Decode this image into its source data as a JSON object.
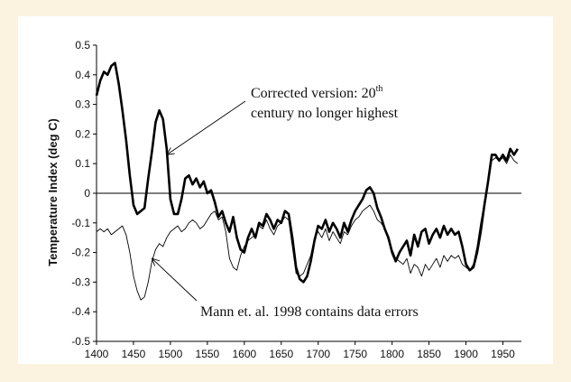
{
  "chart_data": {
    "type": "line",
    "title": "",
    "xlabel": "",
    "ylabel": "Temperature Index (deg C)",
    "xlim": [
      1400,
      1975
    ],
    "ylim": [
      -0.5,
      0.5
    ],
    "x_ticks": [
      "1400",
      "1450",
      "1500",
      "1550",
      "1600",
      "1650",
      "1700",
      "1750",
      "1800",
      "1850",
      "1900",
      "1950"
    ],
    "y_ticks": [
      "0.5",
      "0.4",
      "0.3",
      "0.2",
      "0.1",
      "0",
      "-0.1",
      "-0.2",
      "-0.3",
      "-0.4",
      "-0.5"
    ],
    "grid": false,
    "legend": "none",
    "series": [
      {
        "label_id": "corrected",
        "color": "#000000",
        "style": "thick",
        "points": [
          [
            1400,
            0.33
          ],
          [
            1405,
            0.38
          ],
          [
            1410,
            0.41
          ],
          [
            1415,
            0.4
          ],
          [
            1420,
            0.43
          ],
          [
            1425,
            0.44
          ],
          [
            1430,
            0.37
          ],
          [
            1435,
            0.28
          ],
          [
            1440,
            0.18
          ],
          [
            1445,
            0.06
          ],
          [
            1450,
            -0.04
          ],
          [
            1455,
            -0.07
          ],
          [
            1460,
            -0.06
          ],
          [
            1465,
            -0.05
          ],
          [
            1470,
            0.05
          ],
          [
            1475,
            0.14
          ],
          [
            1480,
            0.24
          ],
          [
            1485,
            0.28
          ],
          [
            1490,
            0.25
          ],
          [
            1495,
            0.15
          ],
          [
            1500,
            -0.02
          ],
          [
            1505,
            -0.07
          ],
          [
            1510,
            -0.07
          ],
          [
            1515,
            -0.02
          ],
          [
            1520,
            0.05
          ],
          [
            1525,
            0.06
          ],
          [
            1530,
            0.03
          ],
          [
            1535,
            0.05
          ],
          [
            1540,
            0.02
          ],
          [
            1545,
            0.04
          ],
          [
            1550,
            0.0
          ],
          [
            1555,
            0.01
          ],
          [
            1560,
            -0.03
          ],
          [
            1565,
            -0.08
          ],
          [
            1570,
            -0.06
          ],
          [
            1575,
            -0.1
          ],
          [
            1580,
            -0.13
          ],
          [
            1585,
            -0.08
          ],
          [
            1590,
            -0.15
          ],
          [
            1595,
            -0.19
          ],
          [
            1600,
            -0.2
          ],
          [
            1605,
            -0.15
          ],
          [
            1610,
            -0.12
          ],
          [
            1615,
            -0.15
          ],
          [
            1620,
            -0.1
          ],
          [
            1625,
            -0.11
          ],
          [
            1630,
            -0.07
          ],
          [
            1635,
            -0.09
          ],
          [
            1640,
            -0.12
          ],
          [
            1645,
            -0.09
          ],
          [
            1650,
            -0.1
          ],
          [
            1655,
            -0.06
          ],
          [
            1660,
            -0.07
          ],
          [
            1665,
            -0.15
          ],
          [
            1670,
            -0.25
          ],
          [
            1675,
            -0.29
          ],
          [
            1680,
            -0.3
          ],
          [
            1685,
            -0.28
          ],
          [
            1690,
            -0.23
          ],
          [
            1695,
            -0.16
          ],
          [
            1700,
            -0.11
          ],
          [
            1705,
            -0.12
          ],
          [
            1710,
            -0.09
          ],
          [
            1715,
            -0.13
          ],
          [
            1720,
            -0.1
          ],
          [
            1725,
            -0.12
          ],
          [
            1730,
            -0.15
          ],
          [
            1735,
            -0.1
          ],
          [
            1740,
            -0.13
          ],
          [
            1745,
            -0.09
          ],
          [
            1750,
            -0.06
          ],
          [
            1755,
            -0.04
          ],
          [
            1760,
            -0.02
          ],
          [
            1765,
            0.01
          ],
          [
            1770,
            0.02
          ],
          [
            1775,
            0.0
          ],
          [
            1780,
            -0.05
          ],
          [
            1785,
            -0.08
          ],
          [
            1790,
            -0.12
          ],
          [
            1795,
            -0.15
          ],
          [
            1800,
            -0.2
          ],
          [
            1805,
            -0.23
          ],
          [
            1810,
            -0.2
          ],
          [
            1815,
            -0.18
          ],
          [
            1820,
            -0.16
          ],
          [
            1825,
            -0.21
          ],
          [
            1830,
            -0.14
          ],
          [
            1835,
            -0.18
          ],
          [
            1840,
            -0.13
          ],
          [
            1845,
            -0.12
          ],
          [
            1850,
            -0.17
          ],
          [
            1855,
            -0.14
          ],
          [
            1860,
            -0.12
          ],
          [
            1865,
            -0.15
          ],
          [
            1870,
            -0.11
          ],
          [
            1875,
            -0.14
          ],
          [
            1880,
            -0.12
          ],
          [
            1885,
            -0.14
          ],
          [
            1890,
            -0.13
          ],
          [
            1895,
            -0.18
          ],
          [
            1900,
            -0.24
          ],
          [
            1905,
            -0.26
          ],
          [
            1910,
            -0.25
          ],
          [
            1915,
            -0.2
          ],
          [
            1920,
            -0.13
          ],
          [
            1925,
            -0.04
          ],
          [
            1930,
            0.04
          ],
          [
            1935,
            0.13
          ],
          [
            1940,
            0.13
          ],
          [
            1945,
            0.11
          ],
          [
            1950,
            0.13
          ],
          [
            1955,
            0.11
          ],
          [
            1960,
            0.15
          ],
          [
            1965,
            0.13
          ],
          [
            1970,
            0.15
          ]
        ]
      },
      {
        "label_id": "mann",
        "color": "#000000",
        "style": "thin",
        "points": [
          [
            1400,
            -0.13
          ],
          [
            1405,
            -0.12
          ],
          [
            1410,
            -0.13
          ],
          [
            1415,
            -0.12
          ],
          [
            1420,
            -0.14
          ],
          [
            1425,
            -0.13
          ],
          [
            1430,
            -0.12
          ],
          [
            1435,
            -0.11
          ],
          [
            1440,
            -0.14
          ],
          [
            1445,
            -0.2
          ],
          [
            1450,
            -0.28
          ],
          [
            1455,
            -0.33
          ],
          [
            1460,
            -0.36
          ],
          [
            1465,
            -0.35
          ],
          [
            1470,
            -0.3
          ],
          [
            1475,
            -0.23
          ],
          [
            1480,
            -0.19
          ],
          [
            1485,
            -0.17
          ],
          [
            1490,
            -0.18
          ],
          [
            1495,
            -0.15
          ],
          [
            1500,
            -0.13
          ],
          [
            1505,
            -0.12
          ],
          [
            1510,
            -0.11
          ],
          [
            1515,
            -0.13
          ],
          [
            1520,
            -0.12
          ],
          [
            1525,
            -0.1
          ],
          [
            1530,
            -0.09
          ],
          [
            1535,
            -0.1
          ],
          [
            1540,
            -0.12
          ],
          [
            1545,
            -0.11
          ],
          [
            1550,
            -0.09
          ],
          [
            1555,
            -0.07
          ],
          [
            1560,
            -0.06
          ],
          [
            1565,
            -0.09
          ],
          [
            1570,
            -0.08
          ],
          [
            1575,
            -0.13
          ],
          [
            1580,
            -0.22
          ],
          [
            1585,
            -0.25
          ],
          [
            1590,
            -0.26
          ],
          [
            1595,
            -0.21
          ],
          [
            1600,
            -0.18
          ],
          [
            1605,
            -0.16
          ],
          [
            1610,
            -0.15
          ],
          [
            1615,
            -0.14
          ],
          [
            1620,
            -0.11
          ],
          [
            1625,
            -0.12
          ],
          [
            1630,
            -0.09
          ],
          [
            1635,
            -0.12
          ],
          [
            1640,
            -0.14
          ],
          [
            1645,
            -0.11
          ],
          [
            1650,
            -0.1
          ],
          [
            1655,
            -0.08
          ],
          [
            1660,
            -0.09
          ],
          [
            1665,
            -0.18
          ],
          [
            1670,
            -0.27
          ],
          [
            1675,
            -0.28
          ],
          [
            1680,
            -0.27
          ],
          [
            1685,
            -0.24
          ],
          [
            1690,
            -0.21
          ],
          [
            1695,
            -0.15
          ],
          [
            1700,
            -0.13
          ],
          [
            1705,
            -0.15
          ],
          [
            1710,
            -0.12
          ],
          [
            1715,
            -0.16
          ],
          [
            1720,
            -0.13
          ],
          [
            1725,
            -0.15
          ],
          [
            1730,
            -0.17
          ],
          [
            1735,
            -0.13
          ],
          [
            1740,
            -0.14
          ],
          [
            1745,
            -0.11
          ],
          [
            1750,
            -0.09
          ],
          [
            1755,
            -0.08
          ],
          [
            1760,
            -0.06
          ],
          [
            1765,
            -0.05
          ],
          [
            1770,
            -0.04
          ],
          [
            1775,
            -0.06
          ],
          [
            1780,
            -0.09
          ],
          [
            1785,
            -0.1
          ],
          [
            1790,
            -0.12
          ],
          [
            1795,
            -0.16
          ],
          [
            1800,
            -0.19
          ],
          [
            1805,
            -0.22
          ],
          [
            1810,
            -0.23
          ],
          [
            1815,
            -0.24
          ],
          [
            1820,
            -0.22
          ],
          [
            1825,
            -0.27
          ],
          [
            1830,
            -0.24
          ],
          [
            1835,
            -0.25
          ],
          [
            1840,
            -0.28
          ],
          [
            1845,
            -0.24
          ],
          [
            1850,
            -0.26
          ],
          [
            1855,
            -0.24
          ],
          [
            1860,
            -0.22
          ],
          [
            1865,
            -0.25
          ],
          [
            1870,
            -0.21
          ],
          [
            1875,
            -0.23
          ],
          [
            1880,
            -0.21
          ],
          [
            1885,
            -0.22
          ],
          [
            1890,
            -0.21
          ],
          [
            1895,
            -0.24
          ],
          [
            1900,
            -0.25
          ],
          [
            1905,
            -0.26
          ],
          [
            1910,
            -0.24
          ],
          [
            1915,
            -0.18
          ],
          [
            1920,
            -0.1
          ],
          [
            1925,
            -0.03
          ],
          [
            1930,
            0.03
          ],
          [
            1935,
            0.11
          ],
          [
            1940,
            0.12
          ],
          [
            1945,
            0.11
          ],
          [
            1950,
            0.12
          ],
          [
            1955,
            0.1
          ],
          [
            1960,
            0.13
          ],
          [
            1965,
            0.11
          ],
          [
            1970,
            0.1
          ]
        ]
      }
    ],
    "annotations": [
      {
        "id": "corrected",
        "text": "Corrected version: 20",
        "sup": "th",
        "text2": "century no longer highest",
        "arrow_to": [
          1495,
          0.13
        ]
      },
      {
        "id": "mann",
        "text": "Mann et. al. 1998 contains data errors",
        "arrow_to": [
          1475,
          -0.22
        ]
      }
    ]
  }
}
